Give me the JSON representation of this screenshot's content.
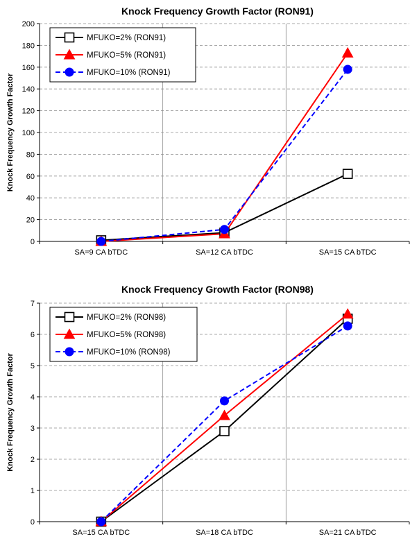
{
  "chart_data": [
    {
      "type": "line",
      "title": "Knock Frequency Growth Factor (RON91)",
      "xlabel": "",
      "ylabel": "Knock Frequency Growth Factor",
      "categories": [
        "SA=9 CA bTDC",
        "SA=12 CA bTDC",
        "SA=15 CA bTDC"
      ],
      "ylim": [
        0,
        200
      ],
      "yticks": [
        0,
        20,
        40,
        60,
        80,
        100,
        120,
        140,
        160,
        180,
        200
      ],
      "grid": true,
      "legend_position": "top-left",
      "series": [
        {
          "name": "MFUKO=2% (RON91)",
          "values": [
            1,
            8,
            62
          ],
          "color": "#000000",
          "marker": "square-open",
          "dash": "solid"
        },
        {
          "name": "MFUKO=5% (RON91)",
          "values": [
            0,
            7,
            173
          ],
          "color": "#ff0000",
          "marker": "triangle",
          "dash": "solid"
        },
        {
          "name": "MFUKO=10% (RON91)",
          "values": [
            0,
            11,
            158
          ],
          "color": "#0000ff",
          "marker": "circle",
          "dash": "dashed"
        }
      ]
    },
    {
      "type": "line",
      "title": "Knock Frequency Growth Factor (RON98)",
      "xlabel": "",
      "ylabel": "Knock Frequency Growth Factor",
      "categories": [
        "SA=15 CA bTDC",
        "SA=18 CA bTDC",
        "SA=21 CA bTDC"
      ],
      "ylim": [
        0,
        7
      ],
      "yticks": [
        0,
        1,
        2,
        3,
        4,
        5,
        6,
        7
      ],
      "grid": true,
      "legend_position": "top-left",
      "series": [
        {
          "name": "MFUKO=2% (RON98)",
          "values": [
            0.0,
            2.9,
            6.5
          ],
          "color": "#000000",
          "marker": "square-open",
          "dash": "solid"
        },
        {
          "name": "MFUKO=5% (RON98)",
          "values": [
            0.0,
            3.4,
            6.65
          ],
          "color": "#ff0000",
          "marker": "triangle",
          "dash": "solid"
        },
        {
          "name": "MFUKO=10% (RON98)",
          "values": [
            0.0,
            3.87,
            6.27
          ],
          "color": "#0000ff",
          "marker": "circle",
          "dash": "dashed"
        }
      ]
    }
  ]
}
